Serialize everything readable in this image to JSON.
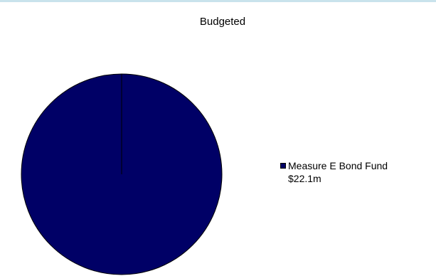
{
  "chart_data": {
    "type": "pie",
    "title": "Budgeted",
    "slices": [
      {
        "label": "Measure E Bond Fund",
        "value_label": "$22.1m",
        "value": 22.1,
        "color": "#000066"
      }
    ],
    "legend_position": "right"
  }
}
